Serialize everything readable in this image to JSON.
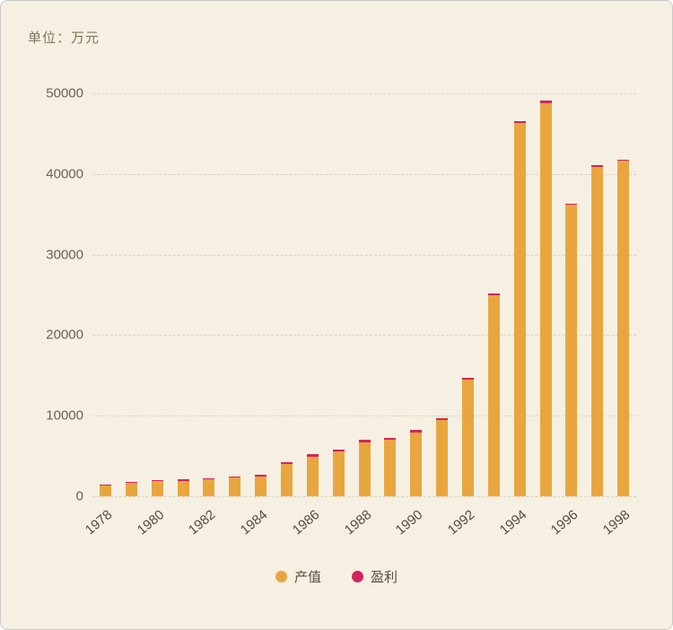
{
  "chart_data": {
    "type": "bar",
    "stacked": true,
    "title": "单位：万元",
    "categories": [
      "1978",
      "1979",
      "1980",
      "1981",
      "1982",
      "1983",
      "1984",
      "1985",
      "1986",
      "1987",
      "1988",
      "1989",
      "1990",
      "1991",
      "1992",
      "1993",
      "1994",
      "1995",
      "1996",
      "1997",
      "1998"
    ],
    "series": [
      {
        "name": "产值",
        "color": "#E9A63F",
        "values": [
          1350,
          1650,
          1900,
          1950,
          2100,
          2300,
          2500,
          4000,
          4950,
          5550,
          6700,
          7000,
          7950,
          9450,
          14450,
          24900,
          46300,
          48800,
          36150,
          40900,
          41600
        ]
      },
      {
        "name": "盈利",
        "color": "#D0265C",
        "values": [
          120,
          130,
          150,
          160,
          180,
          200,
          180,
          220,
          250,
          260,
          280,
          280,
          300,
          280,
          280,
          300,
          300,
          300,
          150,
          150,
          150
        ]
      }
    ],
    "ylim": [
      0,
      50000
    ],
    "ytick_step": 10000,
    "yticks": [
      "0",
      "10000",
      "20000",
      "30000",
      "40000",
      "50000"
    ],
    "x_label_every": 2,
    "grid": "horizontal-dashed",
    "legend_position": "bottom",
    "background": "#F6F0E2"
  }
}
